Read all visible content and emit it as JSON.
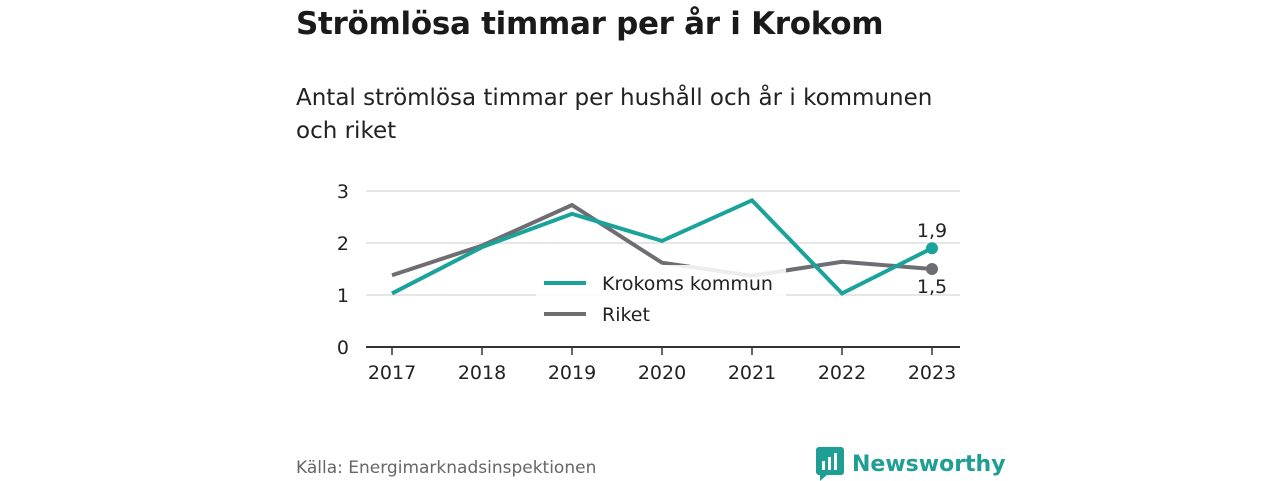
{
  "header": {
    "title": "Strömlösa timmar per år i Krokom",
    "subtitle": "Antal strömlösa timmar per hushåll och år i kommunen och riket"
  },
  "footer": {
    "source": "Källa: Energimarknadsinspektionen",
    "brand": "Newsworthy",
    "brand_icon": "bar-chart-speech-bubble-icon"
  },
  "colors": {
    "krokom": "#1aa39a",
    "riket": "#6e6d72",
    "grid": "#dddddd",
    "axis": "#333333"
  },
  "chart_data": {
    "type": "line",
    "x": [
      "2017",
      "2018",
      "2019",
      "2020",
      "2021",
      "2022",
      "2023"
    ],
    "ylim": [
      0,
      3
    ],
    "yticks": [
      "0",
      "1",
      "2",
      "3"
    ],
    "grid": true,
    "legend_position": "bottom-center",
    "series": [
      {
        "name": "Krokoms kommun",
        "values": [
          1.03,
          1.92,
          2.56,
          2.04,
          2.82,
          1.03,
          1.9
        ],
        "end_label": "1,9"
      },
      {
        "name": "Riket",
        "values": [
          1.38,
          1.95,
          2.73,
          1.62,
          1.37,
          1.64,
          1.5
        ],
        "end_label": "1,5"
      }
    ]
  }
}
